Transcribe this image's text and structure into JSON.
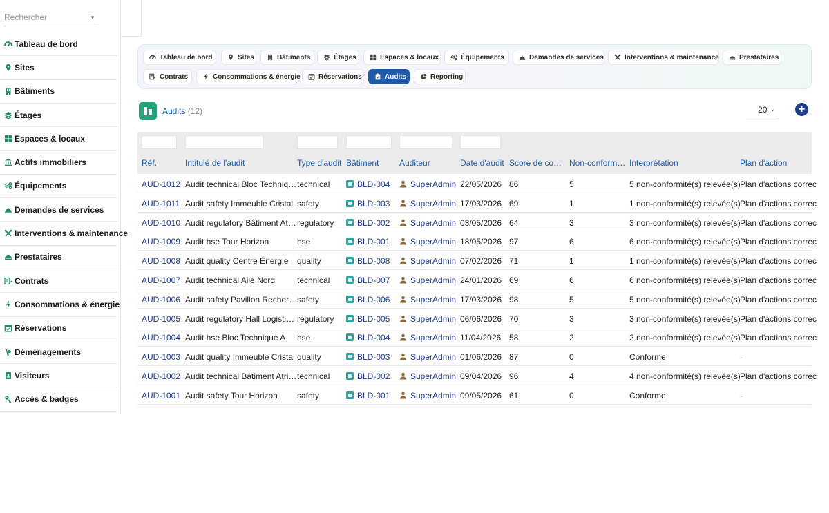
{
  "search": {
    "placeholder": "Rechercher"
  },
  "sidebar": {
    "items": [
      {
        "label": "Tableau de bord",
        "icon": "dashboard-icon"
      },
      {
        "label": "Sites",
        "icon": "map-pin-icon"
      },
      {
        "label": "Bâtiments",
        "icon": "building-icon"
      },
      {
        "label": "Étages",
        "icon": "layers-icon"
      },
      {
        "label": "Espaces & locaux",
        "icon": "grid-icon"
      },
      {
        "label": "Actifs immobiliers",
        "icon": "bank-icon"
      },
      {
        "label": "Équipements",
        "icon": "gears-icon"
      },
      {
        "label": "Demandes de services",
        "icon": "bell-icon"
      },
      {
        "label": "Interventions & maintenance",
        "icon": "tools-icon"
      },
      {
        "label": "Prestataires",
        "icon": "handshake-icon"
      },
      {
        "label": "Contrats",
        "icon": "contract-icon"
      },
      {
        "label": "Consommations & énergie",
        "icon": "bolt-icon"
      },
      {
        "label": "Réservations",
        "icon": "calendar-check-icon"
      },
      {
        "label": "Déménagements",
        "icon": "dolly-icon"
      },
      {
        "label": "Visiteurs",
        "icon": "id-badge-icon"
      },
      {
        "label": "Accès & badges",
        "icon": "key-icon"
      }
    ]
  },
  "tabs": [
    {
      "label": "Tableau de bord",
      "icon": "dashboard-icon"
    },
    {
      "label": "Sites",
      "icon": "map-pin-icon"
    },
    {
      "label": "Bâtiments",
      "icon": "building-icon"
    },
    {
      "label": "Étages",
      "icon": "layers-icon"
    },
    {
      "label": "Espaces & locaux",
      "icon": "grid-icon"
    },
    {
      "label": "Équipements",
      "icon": "gears-icon"
    },
    {
      "label": "Demandes de services",
      "icon": "bell-icon"
    },
    {
      "label": "Interventions & maintenance",
      "icon": "tools-icon"
    },
    {
      "label": "Prestataires",
      "icon": "handshake-icon"
    },
    {
      "label": "Contrats",
      "icon": "contract-icon"
    },
    {
      "label": "Consommations & énergie",
      "icon": "bolt-icon"
    },
    {
      "label": "Réservations",
      "icon": "calendar-check-icon"
    },
    {
      "label": "Audits",
      "icon": "clipboard-check-icon",
      "active": true
    },
    {
      "label": "Reporting",
      "icon": "chart-pie-icon"
    }
  ],
  "module": {
    "title": "Audits",
    "count": "(12)"
  },
  "pagination": {
    "page_size": "20"
  },
  "table": {
    "columns": [
      "Réf.",
      "Intitulé de l'audit",
      "Type d'audit",
      "Bâtiment",
      "Auditeur",
      "Date d'audit",
      "Score de co…",
      "Non-conform…",
      "Interprétation",
      "Plan d'action"
    ],
    "rows": [
      [
        "AUD-1012",
        "Audit technical Bloc Techniq…",
        "technical",
        "BLD-004",
        "SuperAdmin",
        "22/05/2026",
        "86",
        "5",
        "5 non-conformité(s) relevée(s)",
        "Plan d'actions correc"
      ],
      [
        "AUD-1011",
        "Audit safety Immeuble Cristal",
        "safety",
        "BLD-003",
        "SuperAdmin",
        "17/03/2026",
        "69",
        "1",
        "1 non-conformité(s) relevée(s)",
        "Plan d'actions correc"
      ],
      [
        "AUD-1010",
        "Audit regulatory Bâtiment At…",
        "regulatory",
        "BLD-002",
        "SuperAdmin",
        "03/05/2026",
        "64",
        "3",
        "3 non-conformité(s) relevée(s)",
        "Plan d'actions correc"
      ],
      [
        "AUD-1009",
        "Audit hse Tour Horizon",
        "hse",
        "BLD-001",
        "SuperAdmin",
        "18/05/2026",
        "97",
        "6",
        "6 non-conformité(s) relevée(s)",
        "Plan d'actions correc"
      ],
      [
        "AUD-1008",
        "Audit quality Centre Énergie",
        "quality",
        "BLD-008",
        "SuperAdmin",
        "07/02/2026",
        "71",
        "1",
        "1 non-conformité(s) relevée(s)",
        "Plan d'actions correc"
      ],
      [
        "AUD-1007",
        "Audit technical Aile Nord",
        "technical",
        "BLD-007",
        "SuperAdmin",
        "24/01/2026",
        "69",
        "6",
        "6 non-conformité(s) relevée(s)",
        "Plan d'actions correc"
      ],
      [
        "AUD-1006",
        "Audit safety Pavillon Recher…",
        "safety",
        "BLD-006",
        "SuperAdmin",
        "17/03/2026",
        "98",
        "5",
        "5 non-conformité(s) relevée(s)",
        "Plan d'actions correc"
      ],
      [
        "AUD-1005",
        "Audit regulatory Hall Logisti…",
        "regulatory",
        "BLD-005",
        "SuperAdmin",
        "06/06/2026",
        "70",
        "3",
        "3 non-conformité(s) relevée(s)",
        "Plan d'actions correc"
      ],
      [
        "AUD-1004",
        "Audit hse Bloc Technique A",
        "hse",
        "BLD-004",
        "SuperAdmin",
        "11/04/2026",
        "58",
        "2",
        "2 non-conformité(s) relevée(s)",
        "Plan d'actions correc"
      ],
      [
        "AUD-1003",
        "Audit quality Immeuble Cristal",
        "quality",
        "BLD-003",
        "SuperAdmin",
        "01/06/2026",
        "87",
        "0",
        "Conforme",
        "-"
      ],
      [
        "AUD-1002",
        "Audit technical Bâtiment Atri…",
        "technical",
        "BLD-002",
        "SuperAdmin",
        "09/04/2026",
        "96",
        "4",
        "4 non-conformité(s) relevée(s)",
        "Plan d'actions correc"
      ],
      [
        "AUD-1001",
        "Audit safety Tour Horizon",
        "safety",
        "BLD-001",
        "SuperAdmin",
        "09/05/2026",
        "61",
        "0",
        "Conforme",
        "-"
      ]
    ]
  },
  "colors": {
    "accent": "#1f5aa8",
    "active_tab": "#1f5aa8",
    "module_icon": "#24a37a",
    "nav_icon": "#1f8a63",
    "add_button": "#1f3d8a",
    "building_icon": "#2aa5a0",
    "user_icon": "#8a6a3c"
  }
}
